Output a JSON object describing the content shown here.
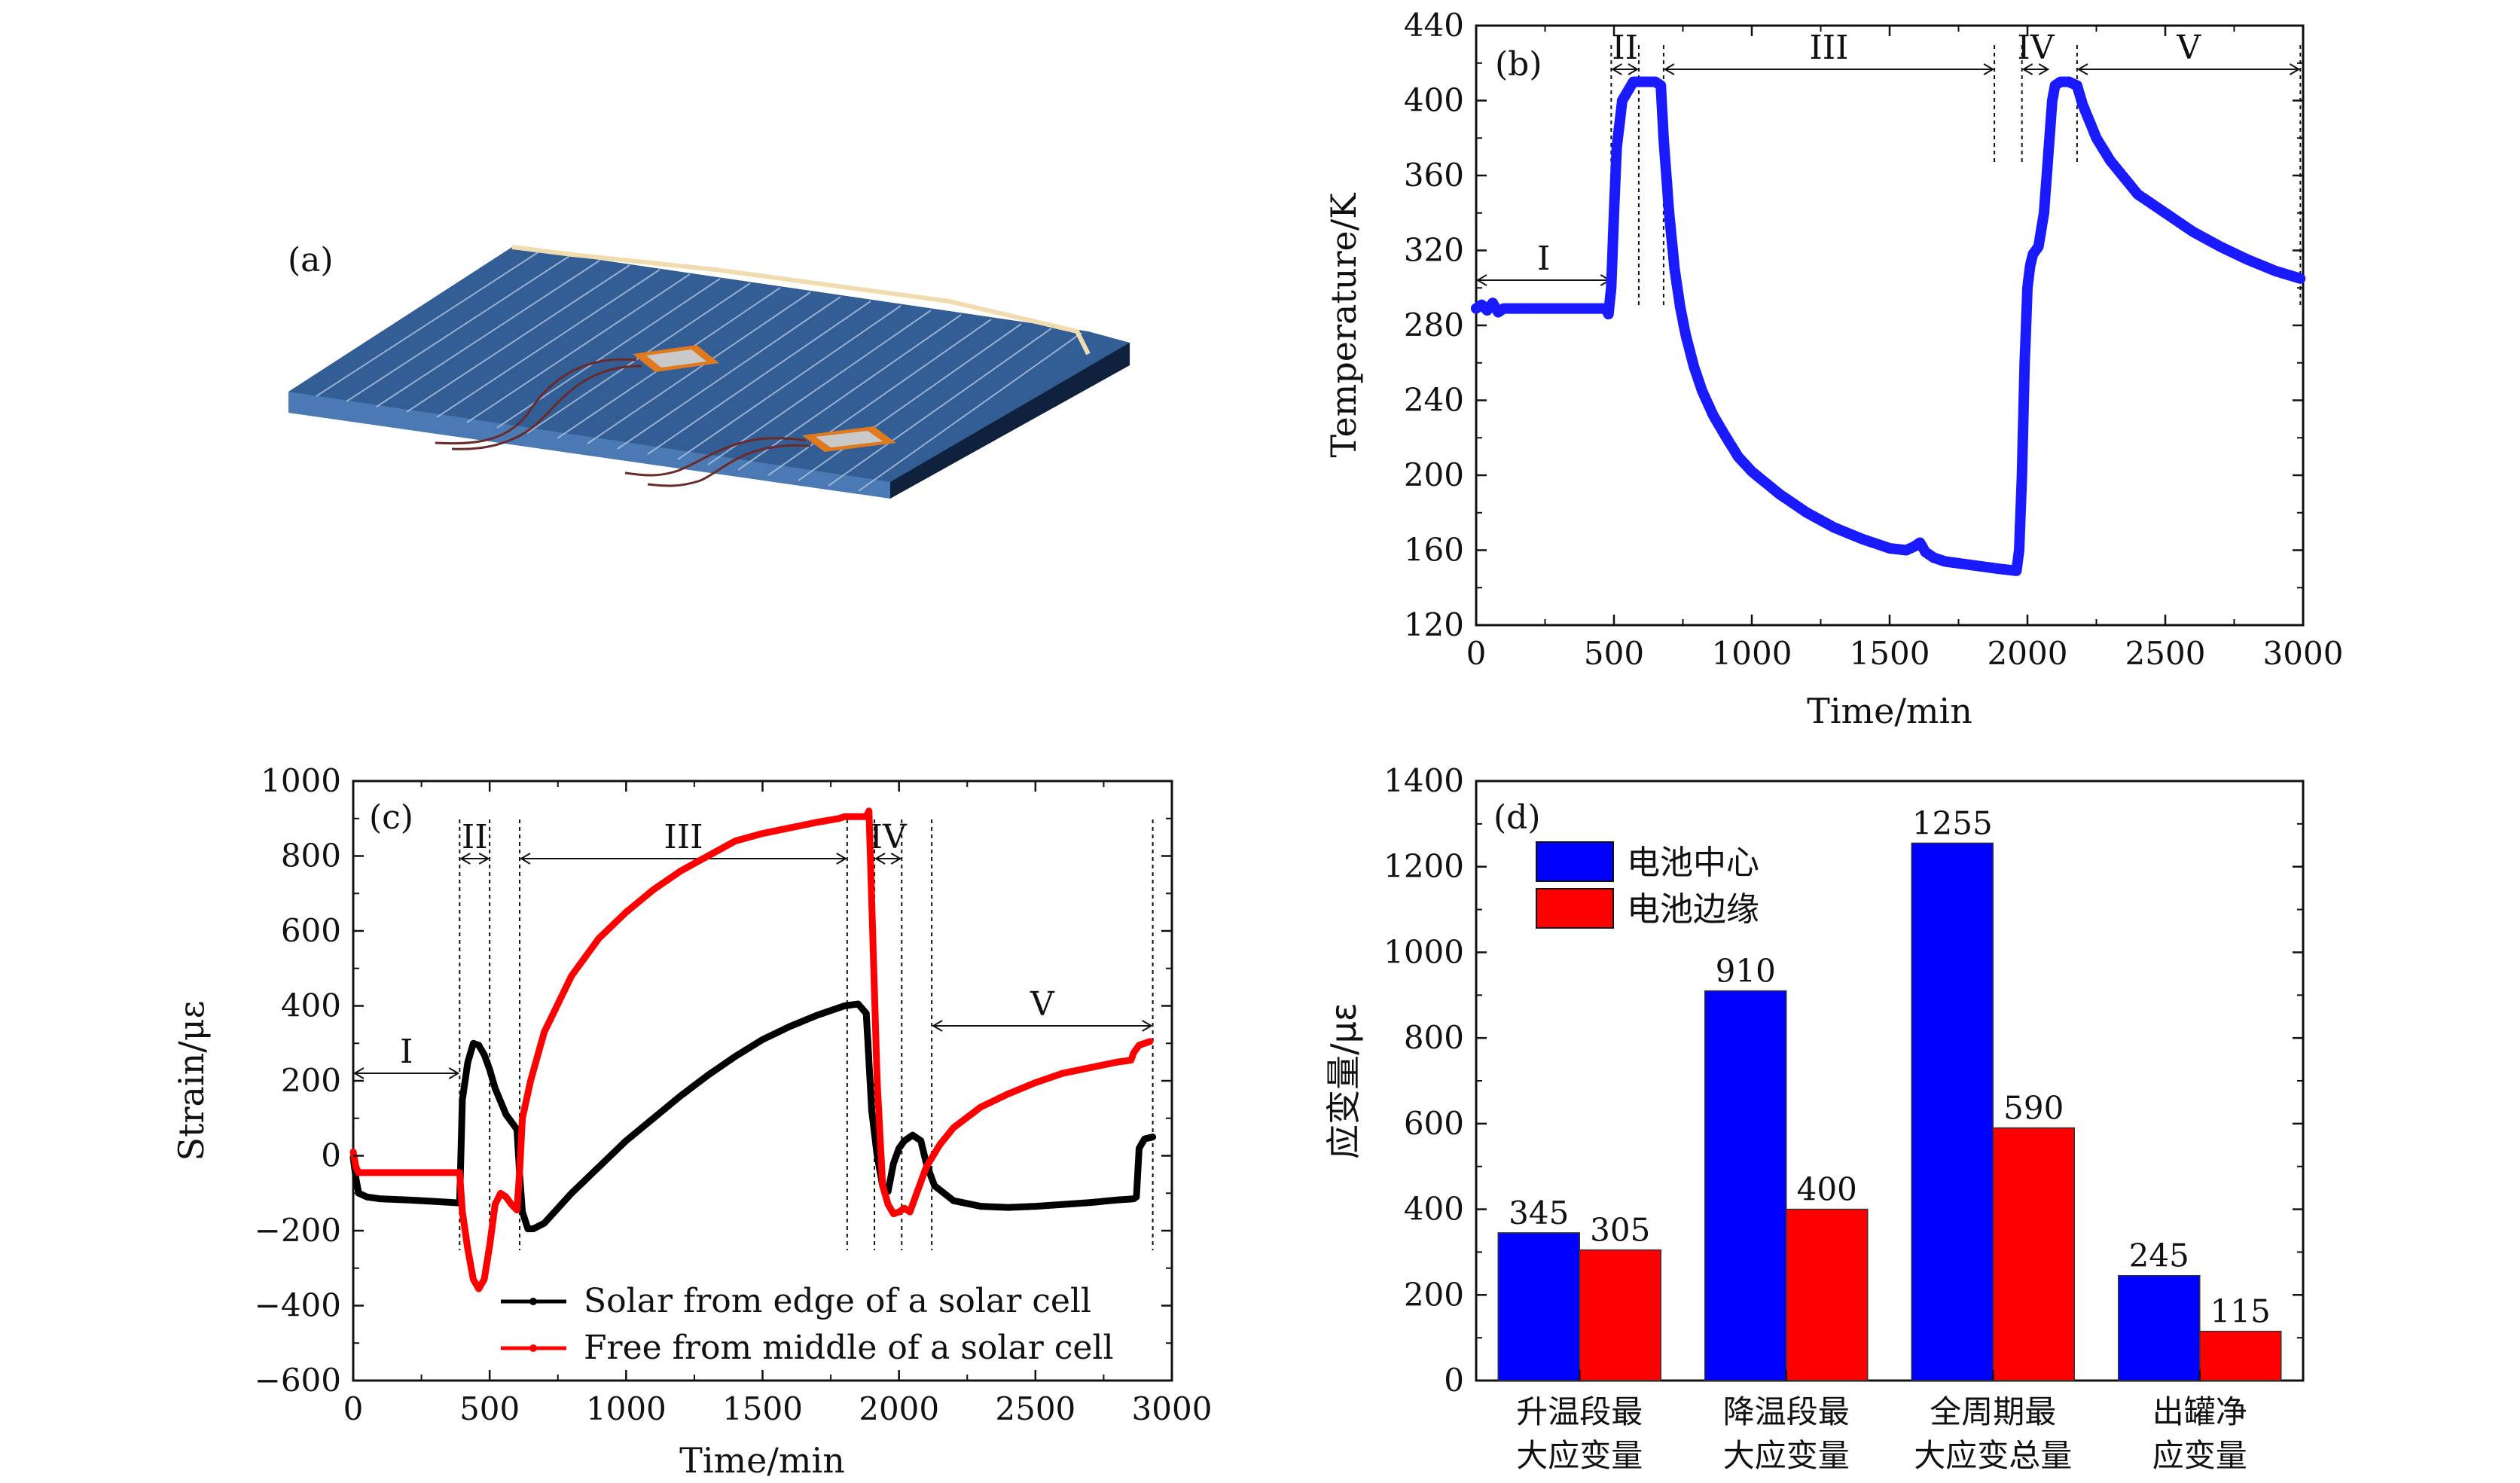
{
  "chart_data": [
    {
      "panel": "(a)",
      "type": "other"
    },
    {
      "panel": "(b)",
      "type": "scatter",
      "xlabel": "Time/min",
      "ylabel": "Temperature/K",
      "xlim": [
        0,
        3000
      ],
      "ylim": [
        120,
        440
      ],
      "xticks": [
        "0",
        "500",
        "1000",
        "1500",
        "2000",
        "2500",
        "3000"
      ],
      "yticks": [
        "120",
        "160",
        "200",
        "240",
        "280",
        "320",
        "360",
        "400",
        "440"
      ],
      "series_color": "#1a1aff",
      "stages": [
        {
          "label": "I",
          "x": [
            0,
            490
          ]
        },
        {
          "label": "II",
          "x": [
            490,
            590
          ]
        },
        {
          "label": "III",
          "x": [
            680,
            1880
          ]
        },
        {
          "label": "IV",
          "x": [
            1980,
            2080
          ]
        },
        {
          "label": "V",
          "x": [
            2180,
            2990
          ]
        }
      ],
      "stage_marks": [
        490,
        590,
        680,
        1880,
        1980,
        2180,
        2990
      ],
      "x": [
        0,
        20,
        40,
        60,
        80,
        100,
        200,
        300,
        400,
        470,
        480,
        490,
        500,
        510,
        530,
        550,
        570,
        590,
        620,
        650,
        670,
        680,
        700,
        720,
        740,
        760,
        790,
        820,
        860,
        900,
        950,
        1000,
        1100,
        1200,
        1300,
        1400,
        1500,
        1560,
        1590,
        1610,
        1630,
        1660,
        1700,
        1800,
        1900,
        1960,
        1970,
        1980,
        1990,
        2000,
        2010,
        2020,
        2040,
        2060,
        2080,
        2090,
        2100,
        2120,
        2150,
        2180,
        2200,
        2250,
        2300,
        2400,
        2500,
        2600,
        2700,
        2800,
        2900,
        2990
      ],
      "y": [
        289,
        291,
        288,
        292,
        287,
        289,
        289,
        289,
        289,
        289,
        286,
        300,
        340,
        375,
        400,
        405,
        410,
        410,
        410,
        410,
        408,
        380,
        340,
        310,
        290,
        275,
        258,
        245,
        232,
        222,
        210,
        202,
        190,
        180,
        172,
        166,
        161,
        160,
        162,
        164,
        159,
        156,
        154,
        152,
        150,
        149,
        160,
        200,
        260,
        300,
        312,
        318,
        322,
        340,
        380,
        400,
        408,
        410,
        410,
        408,
        398,
        380,
        368,
        350,
        340,
        330,
        322,
        315,
        309,
        305
      ]
    },
    {
      "panel": "(c)",
      "type": "line",
      "xlabel": "Time/min",
      "ylabel": "Strain/με",
      "xlim": [
        0,
        3000
      ],
      "ylim": [
        -600,
        1000
      ],
      "xticks": [
        "0",
        "500",
        "1000",
        "1500",
        "2000",
        "2500",
        "3000"
      ],
      "yticks": [
        "−600",
        "−400",
        "−200",
        "0",
        "200",
        "400",
        "600",
        "800",
        "1000"
      ],
      "stages": [
        {
          "label": "I",
          "x": [
            0,
            390
          ]
        },
        {
          "label": "II",
          "x": [
            390,
            500
          ]
        },
        {
          "label": "III",
          "x": [
            610,
            1810
          ]
        },
        {
          "label": "IV",
          "x": [
            1910,
            2010
          ]
        },
        {
          "label": "V",
          "x": [
            2120,
            2930
          ]
        }
      ],
      "stage_marks": [
        390,
        500,
        610,
        1810,
        1910,
        2010,
        2120,
        2930
      ],
      "series": [
        {
          "name": "Solar from edge of a solar cell",
          "color": "#000000",
          "x": [
            0,
            10,
            20,
            50,
            100,
            200,
            300,
            390,
            400,
            420,
            440,
            460,
            480,
            500,
            520,
            560,
            590,
            600,
            610,
            620,
            640,
            660,
            700,
            800,
            900,
            1000,
            1100,
            1200,
            1300,
            1400,
            1500,
            1600,
            1700,
            1780,
            1800,
            1850,
            1880,
            1900,
            1920,
            1940,
            1960,
            1980,
            2000,
            2020,
            2050,
            2080,
            2100,
            2130,
            2200,
            2300,
            2400,
            2500,
            2600,
            2700,
            2800,
            2860,
            2870,
            2880,
            2900,
            2930
          ],
          "y": [
            -5,
            -60,
            -100,
            -110,
            -115,
            -118,
            -122,
            -126,
            150,
            250,
            300,
            295,
            270,
            230,
            180,
            110,
            80,
            70,
            -50,
            -150,
            -195,
            -195,
            -180,
            -100,
            -30,
            40,
            100,
            160,
            215,
            265,
            310,
            345,
            375,
            395,
            400,
            405,
            380,
            120,
            0,
            -80,
            -95,
            -20,
            20,
            40,
            55,
            40,
            -20,
            -80,
            -120,
            -135,
            -138,
            -135,
            -130,
            -125,
            -118,
            -115,
            -110,
            20,
            45,
            50
          ]
        },
        {
          "name": "Free from middle of a solar cell",
          "color": "#ff0000",
          "x": [
            0,
            10,
            20,
            50,
            100,
            200,
            300,
            390,
            400,
            420,
            440,
            460,
            480,
            500,
            520,
            540,
            560,
            580,
            600,
            610,
            620,
            650,
            700,
            800,
            900,
            1000,
            1100,
            1200,
            1300,
            1400,
            1500,
            1600,
            1700,
            1780,
            1800,
            1840,
            1880,
            1890,
            1900,
            1920,
            1940,
            1960,
            1980,
            2000,
            2020,
            2040,
            2060,
            2080,
            2100,
            2150,
            2200,
            2300,
            2400,
            2500,
            2600,
            2700,
            2800,
            2850,
            2860,
            2880,
            2920
          ],
          "y": [
            10,
            -30,
            -45,
            -45,
            -45,
            -45,
            -45,
            -45,
            -150,
            -250,
            -330,
            -355,
            -330,
            -240,
            -130,
            -100,
            -110,
            -130,
            -145,
            -40,
            100,
            200,
            330,
            480,
            580,
            650,
            710,
            760,
            800,
            840,
            860,
            875,
            890,
            900,
            905,
            905,
            905,
            920,
            680,
            200,
            -80,
            -130,
            -155,
            -150,
            -140,
            -150,
            -110,
            -70,
            -30,
            30,
            75,
            130,
            165,
            195,
            220,
            235,
            250,
            255,
            275,
            295,
            305
          ]
        }
      ]
    },
    {
      "panel": "(d)",
      "type": "bar",
      "ylabel": "应变量/με",
      "ylim": [
        0,
        1400
      ],
      "yticks": [
        "0",
        "200",
        "400",
        "600",
        "800",
        "1000",
        "1200",
        "1400"
      ],
      "categories": [
        [
          "升温段最",
          "大应变量"
        ],
        [
          "降温段最",
          "大应变量"
        ],
        [
          "全周期最",
          "大应变总量"
        ],
        [
          "出罐净",
          "应变量"
        ]
      ],
      "series": [
        {
          "name": "电池中心",
          "color": "#0000ff",
          "values": [
            345,
            910,
            1255,
            245
          ]
        },
        {
          "name": "电池边缘",
          "color": "#ff0000",
          "values": [
            305,
            400,
            590,
            115
          ]
        }
      ]
    }
  ]
}
